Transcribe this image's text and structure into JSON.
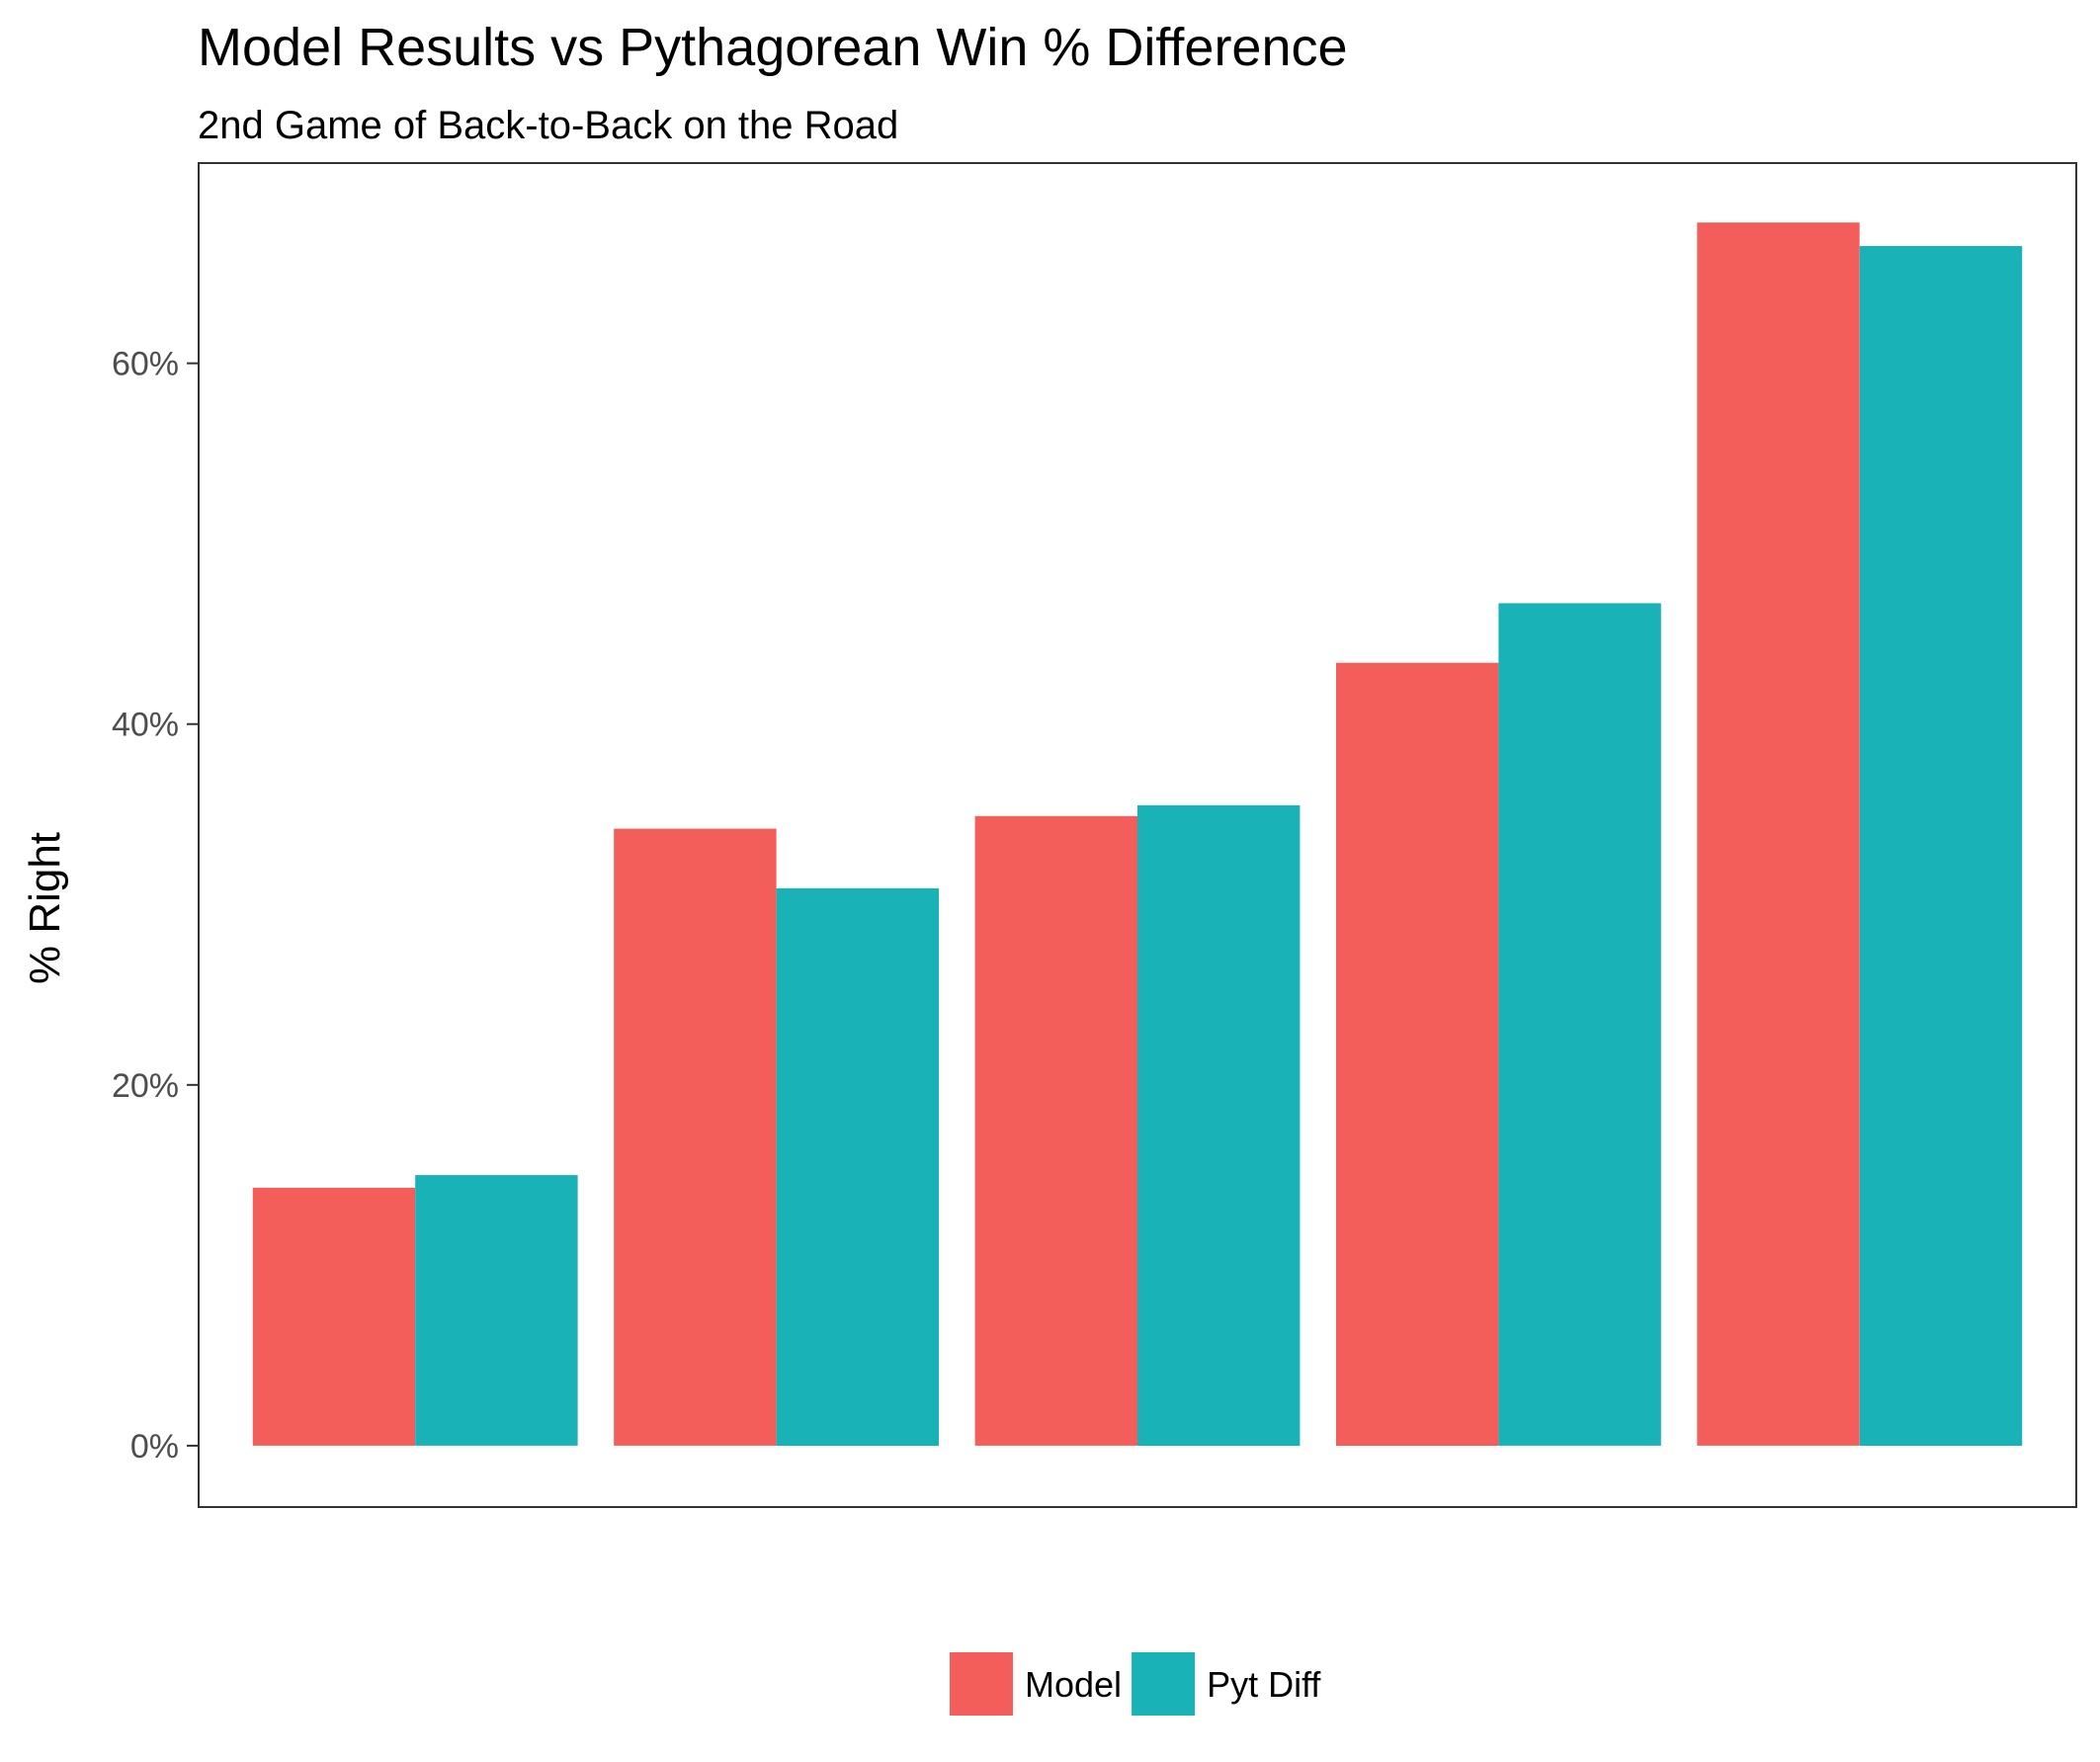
{
  "chart_data": {
    "type": "bar",
    "title": "Model Results vs Pythagorean Win % Difference",
    "subtitle": "2nd Game of Back-to-Back on the Road",
    "xlabel": "",
    "ylabel": "% Right",
    "categories": [
      "",
      "",
      "",
      "",
      ""
    ],
    "series": [
      {
        "name": "Model",
        "color": "#F35E5A",
        "values": [
          14.3,
          34.2,
          34.9,
          43.4,
          67.8
        ]
      },
      {
        "name": "Pyt Diff",
        "color": "#19B2B7",
        "values": [
          15.0,
          30.9,
          35.5,
          46.7,
          66.5
        ]
      }
    ],
    "ylim": [
      -3.4,
      71.1
    ],
    "yticks": [
      0,
      20,
      40,
      60
    ],
    "ytick_labels": [
      "0%",
      "20%",
      "40%",
      "60%"
    ],
    "grid": false,
    "legend": {
      "position": "bottom",
      "entries": [
        "Model",
        "Pyt Diff"
      ]
    }
  }
}
